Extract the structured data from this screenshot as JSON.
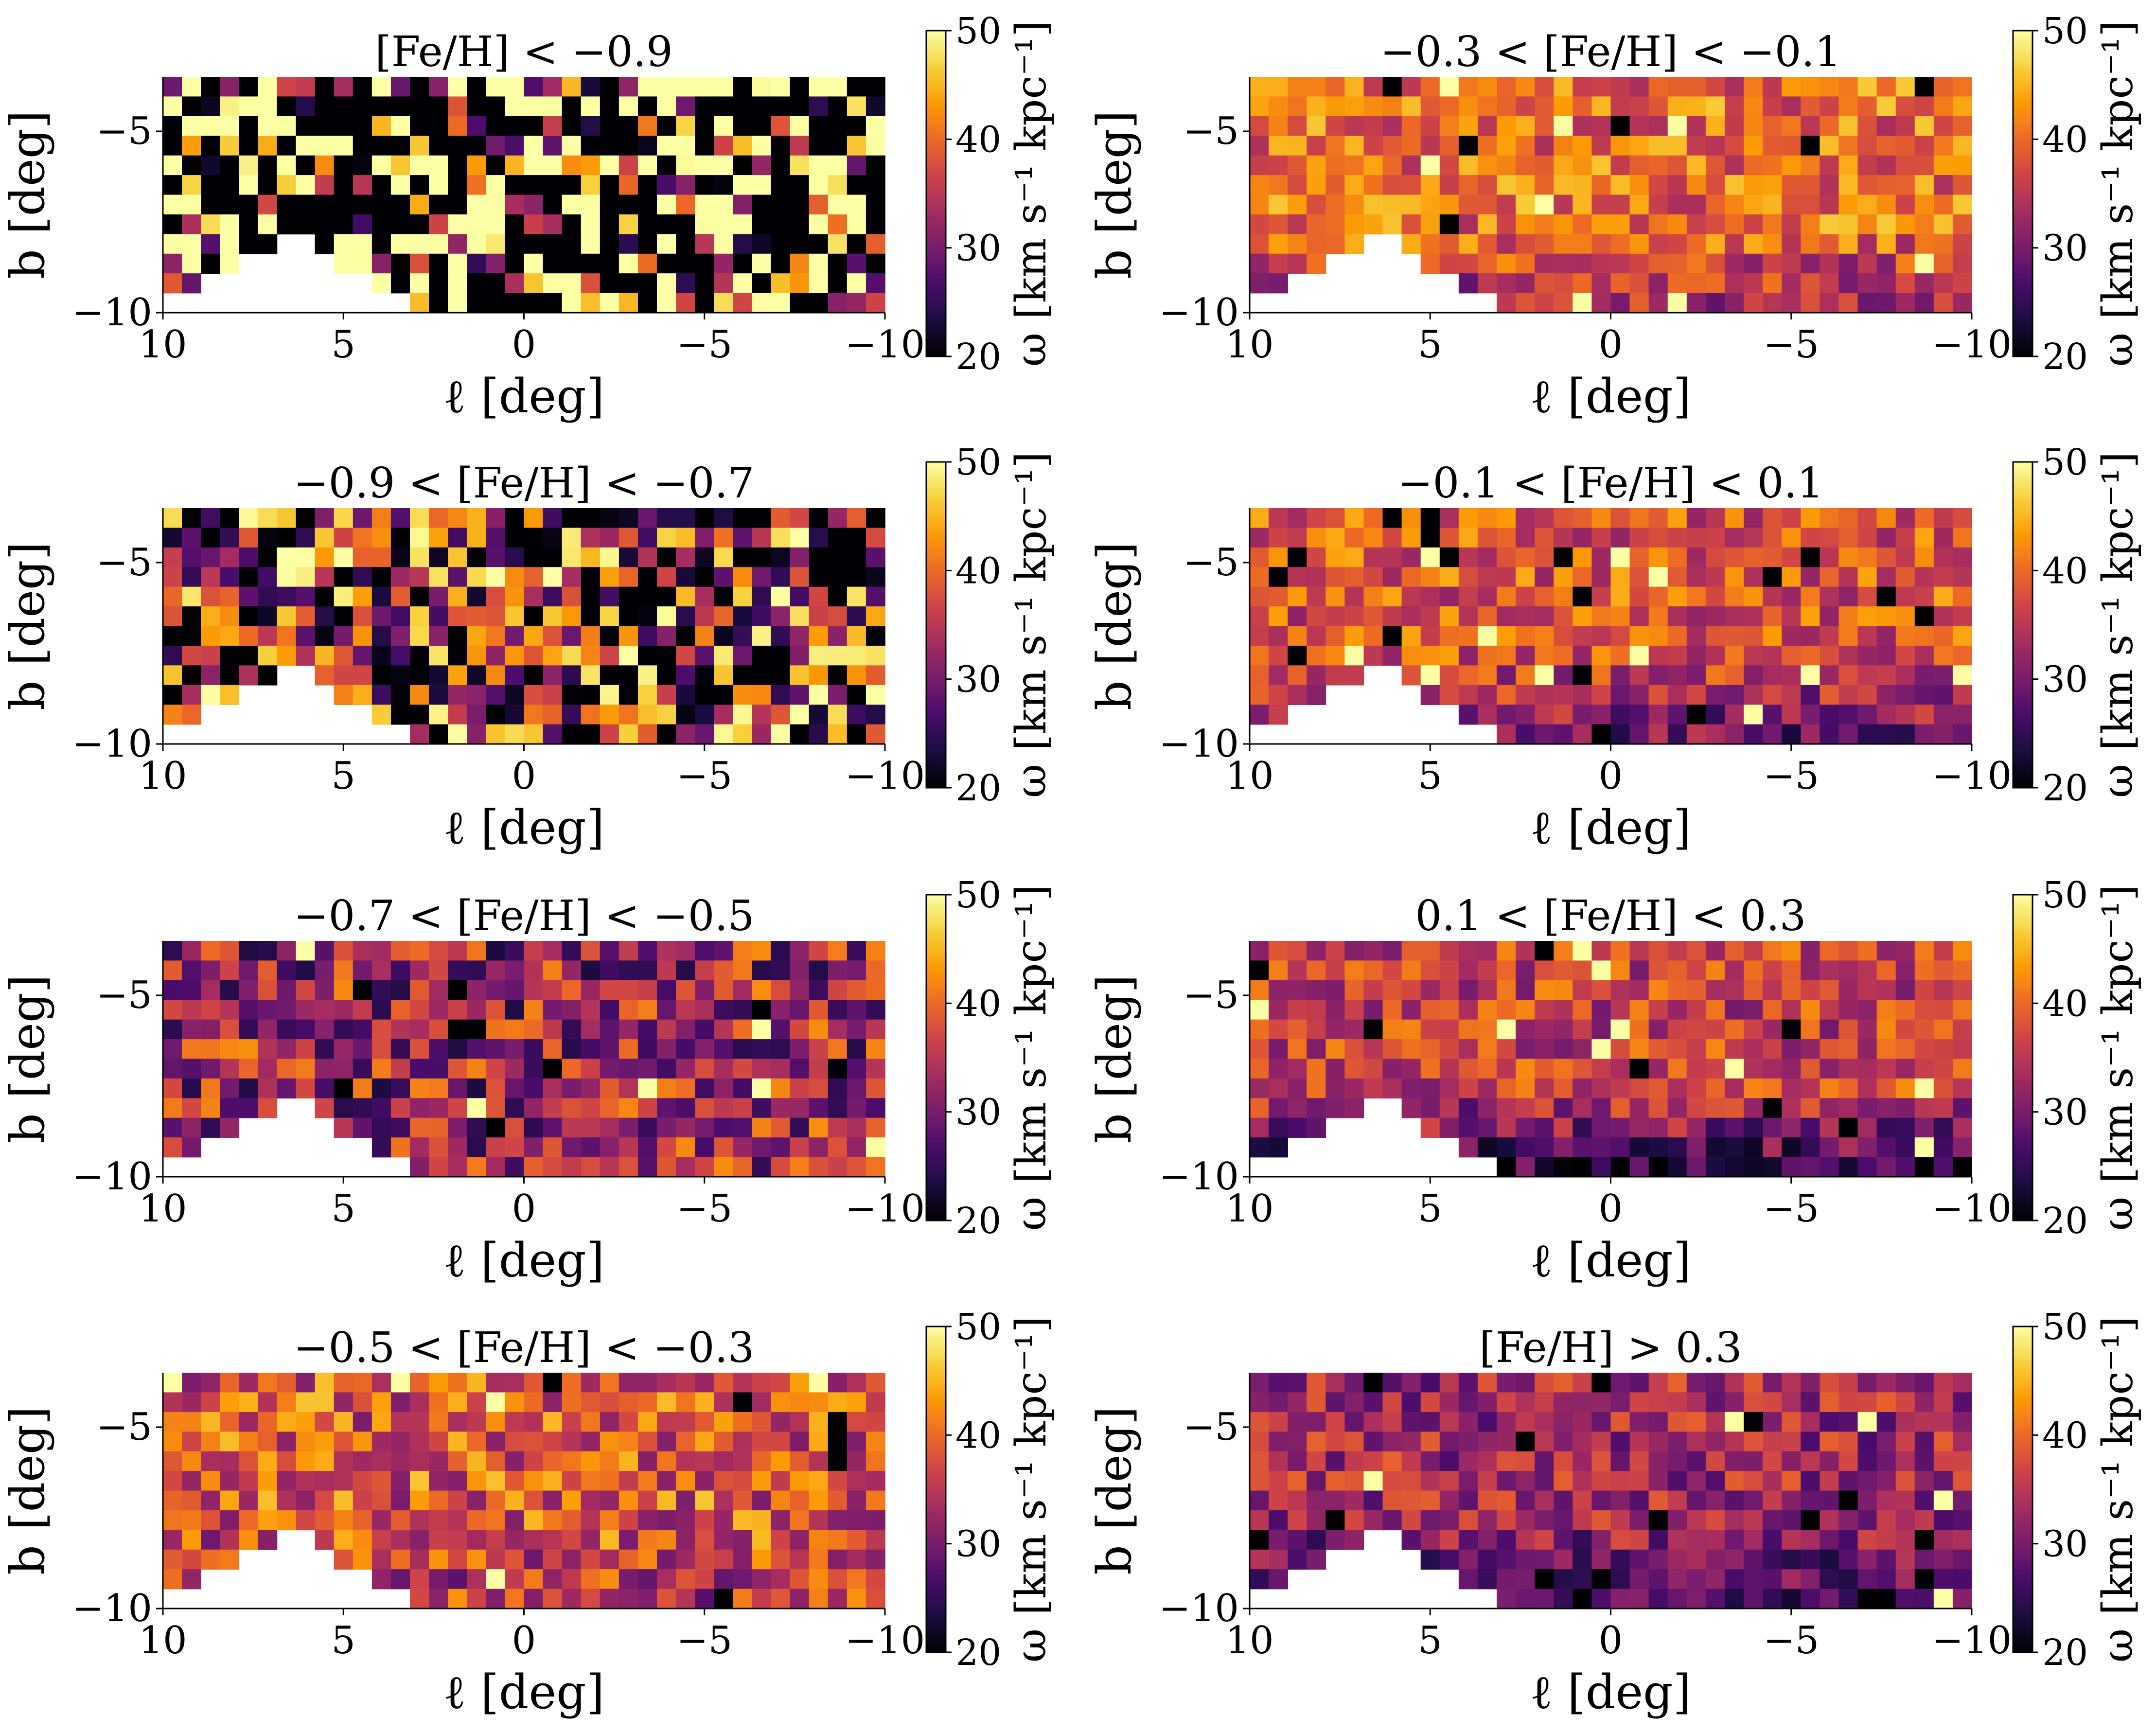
{
  "figure": {
    "colormap_stops": [
      "#000004",
      "#1b0c41",
      "#4a0c6b",
      "#781c6d",
      "#a52c60",
      "#cf4446",
      "#ed6925",
      "#fb9b06",
      "#f7d13d",
      "#fcffa4"
    ],
    "colorbar": {
      "label": "ω [km s⁻¹ kpc⁻¹]",
      "range": [
        20,
        50
      ],
      "ticks": [
        "20",
        "30",
        "40",
        "50"
      ]
    }
  },
  "chart_data": [
    {
      "type": "heatmap",
      "title": "[Fe/H] < −0.9",
      "xlabel": "ℓ [deg]",
      "ylabel": "b [deg]",
      "xlim": [
        10,
        -10
      ],
      "ylim": [
        -10,
        -3.5
      ],
      "xticks": [
        "10",
        "5",
        "0",
        "−5",
        "−10"
      ],
      "yticks": [
        "−5",
        "−10"
      ],
      "grid": false,
      "colorbar_label": "ω [km s⁻¹ kpc⁻¹]",
      "zlim": [
        20,
        50
      ],
      "character": "noisy, mostly dark and pale yellow cells",
      "mean": 33,
      "noise": 22,
      "low_b_dim": 0
    },
    {
      "type": "heatmap",
      "title": "−0.3 < [Fe/H] < −0.1",
      "xlabel": "ℓ [deg]",
      "ylabel": "b [deg]",
      "xlim": [
        10,
        -10
      ],
      "ylim": [
        -10,
        -3.5
      ],
      "xticks": [
        "10",
        "5",
        "0",
        "−5",
        "−10"
      ],
      "yticks": [
        "−5",
        "−10"
      ],
      "grid": false,
      "colorbar_label": "ω [km s⁻¹ kpc⁻¹]",
      "zlim": [
        20,
        50
      ],
      "character": "mostly orange, darker near the lower edge",
      "mean": 40,
      "noise": 4,
      "low_b_dim": 7
    },
    {
      "type": "heatmap",
      "title": "−0.9 < [Fe/H] < −0.7",
      "xlabel": "ℓ [deg]",
      "ylabel": "b [deg]",
      "xlim": [
        10,
        -10
      ],
      "ylim": [
        -10,
        -3.5
      ],
      "xticks": [
        "10",
        "5",
        "0",
        "−5",
        "−10"
      ],
      "yticks": [
        "−5",
        "−10"
      ],
      "grid": false,
      "colorbar_label": "ω [km s⁻¹ kpc⁻¹]",
      "zlim": [
        20,
        50
      ],
      "character": "noisy purple and orange",
      "mean": 31,
      "noise": 12,
      "low_b_dim": 0
    },
    {
      "type": "heatmap",
      "title": "−0.1 < [Fe/H] < 0.1",
      "xlabel": "ℓ [deg]",
      "ylabel": "b [deg]",
      "xlim": [
        10,
        -10
      ],
      "ylim": [
        -10,
        -3.5
      ],
      "xticks": [
        "10",
        "5",
        "0",
        "−5",
        "−10"
      ],
      "yticks": [
        "−5",
        "−10"
      ],
      "grid": false,
      "colorbar_label": "ω [km s⁻¹ kpc⁻¹]",
      "zlim": [
        20,
        50
      ],
      "character": "orange top rows, purple near the lower edge",
      "mean": 38,
      "noise": 4,
      "low_b_dim": 9
    },
    {
      "type": "heatmap",
      "title": "−0.7 < [Fe/H] < −0.5",
      "xlabel": "ℓ [deg]",
      "ylabel": "b [deg]",
      "xlim": [
        10,
        -10
      ],
      "ylim": [
        -10,
        -3.5
      ],
      "xticks": [
        "10",
        "5",
        "0",
        "−5",
        "−10"
      ],
      "yticks": [
        "−5",
        "−10"
      ],
      "grid": false,
      "colorbar_label": "ω [km s⁻¹ kpc⁻¹]",
      "zlim": [
        20,
        50
      ],
      "character": "mostly purple to red",
      "mean": 33,
      "noise": 6,
      "low_b_dim": 0
    },
    {
      "type": "heatmap",
      "title": "0.1 < [Fe/H] < 0.3",
      "xlabel": "ℓ [deg]",
      "ylabel": "b [deg]",
      "xlim": [
        10,
        -10
      ],
      "ylim": [
        -10,
        -3.5
      ],
      "xticks": [
        "10",
        "5",
        "0",
        "−5",
        "−10"
      ],
      "yticks": [
        "−5",
        "−10"
      ],
      "grid": false,
      "colorbar_label": "ω [km s⁻¹ kpc⁻¹]",
      "zlim": [
        20,
        50
      ],
      "character": "orange top, dark purple near the lower edge",
      "mean": 36,
      "noise": 4,
      "low_b_dim": 11
    },
    {
      "type": "heatmap",
      "title": "−0.5 < [Fe/H] < −0.3",
      "xlabel": "ℓ [deg]",
      "ylabel": "b [deg]",
      "xlim": [
        10,
        -10
      ],
      "ylim": [
        -10,
        -3.5
      ],
      "xticks": [
        "10",
        "5",
        "0",
        "−5",
        "−10"
      ],
      "yticks": [
        "−5",
        "−10"
      ],
      "grid": false,
      "colorbar_label": "ω [km s⁻¹ kpc⁻¹]",
      "zlim": [
        20,
        50
      ],
      "character": "orange to yellow centre, purple edges",
      "mean": 38,
      "noise": 5,
      "low_b_dim": 3
    },
    {
      "type": "heatmap",
      "title": "[Fe/H] > 0.3",
      "xlabel": "ℓ [deg]",
      "ylabel": "b [deg]",
      "xlim": [
        10,
        -10
      ],
      "ylim": [
        -10,
        -3.5
      ],
      "xticks": [
        "10",
        "5",
        "0",
        "−5",
        "−10"
      ],
      "yticks": [
        "−5",
        "−10"
      ],
      "grid": false,
      "colorbar_label": "ω [km s⁻¹ kpc⁻¹]",
      "zlim": [
        20,
        50
      ],
      "character": "purple to red, black cells near the lower edge",
      "mean": 33,
      "noise": 4,
      "low_b_dim": 8
    }
  ]
}
